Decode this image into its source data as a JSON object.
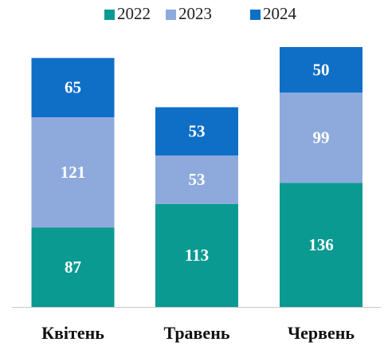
{
  "chart_data": {
    "type": "stacked_bar",
    "categories": [
      "Квітень",
      "Травень",
      "Червень"
    ],
    "series": [
      {
        "name": "2022",
        "color": "#0a9a92",
        "values": [
          87,
          113,
          136
        ]
      },
      {
        "name": "2023",
        "color": "#8eaadc",
        "values": [
          121,
          53,
          99
        ]
      },
      {
        "name": "2024",
        "color": "#0f6fc6",
        "values": [
          65,
          53,
          50
        ]
      }
    ],
    "legend": "top"
  }
}
